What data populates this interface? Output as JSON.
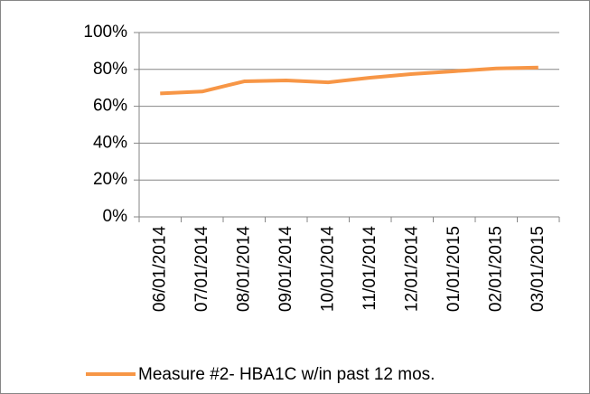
{
  "chart_data": {
    "type": "line",
    "categories": [
      "06/01/2014",
      "07/01/2014",
      "08/01/2014",
      "09/01/2014",
      "10/01/2014",
      "11/01/2014",
      "12/01/2014",
      "01/01/2015",
      "02/01/2015",
      "03/01/2015"
    ],
    "series": [
      {
        "name": "Measure #2- HBA1C w/in past 12 mos.",
        "color": "#f79646",
        "values": [
          67,
          68,
          73.5,
          74,
          73,
          75.5,
          77.5,
          79,
          80.5,
          81
        ]
      }
    ],
    "ylim": [
      0,
      100
    ],
    "yticks": [
      {
        "value": 0,
        "label": "0%"
      },
      {
        "value": 20,
        "label": "20%"
      },
      {
        "value": 40,
        "label": "40%"
      },
      {
        "value": 60,
        "label": "60%"
      },
      {
        "value": 80,
        "label": "80%"
      },
      {
        "value": 100,
        "label": "100%"
      }
    ],
    "grid": true,
    "legend": "bottom"
  }
}
